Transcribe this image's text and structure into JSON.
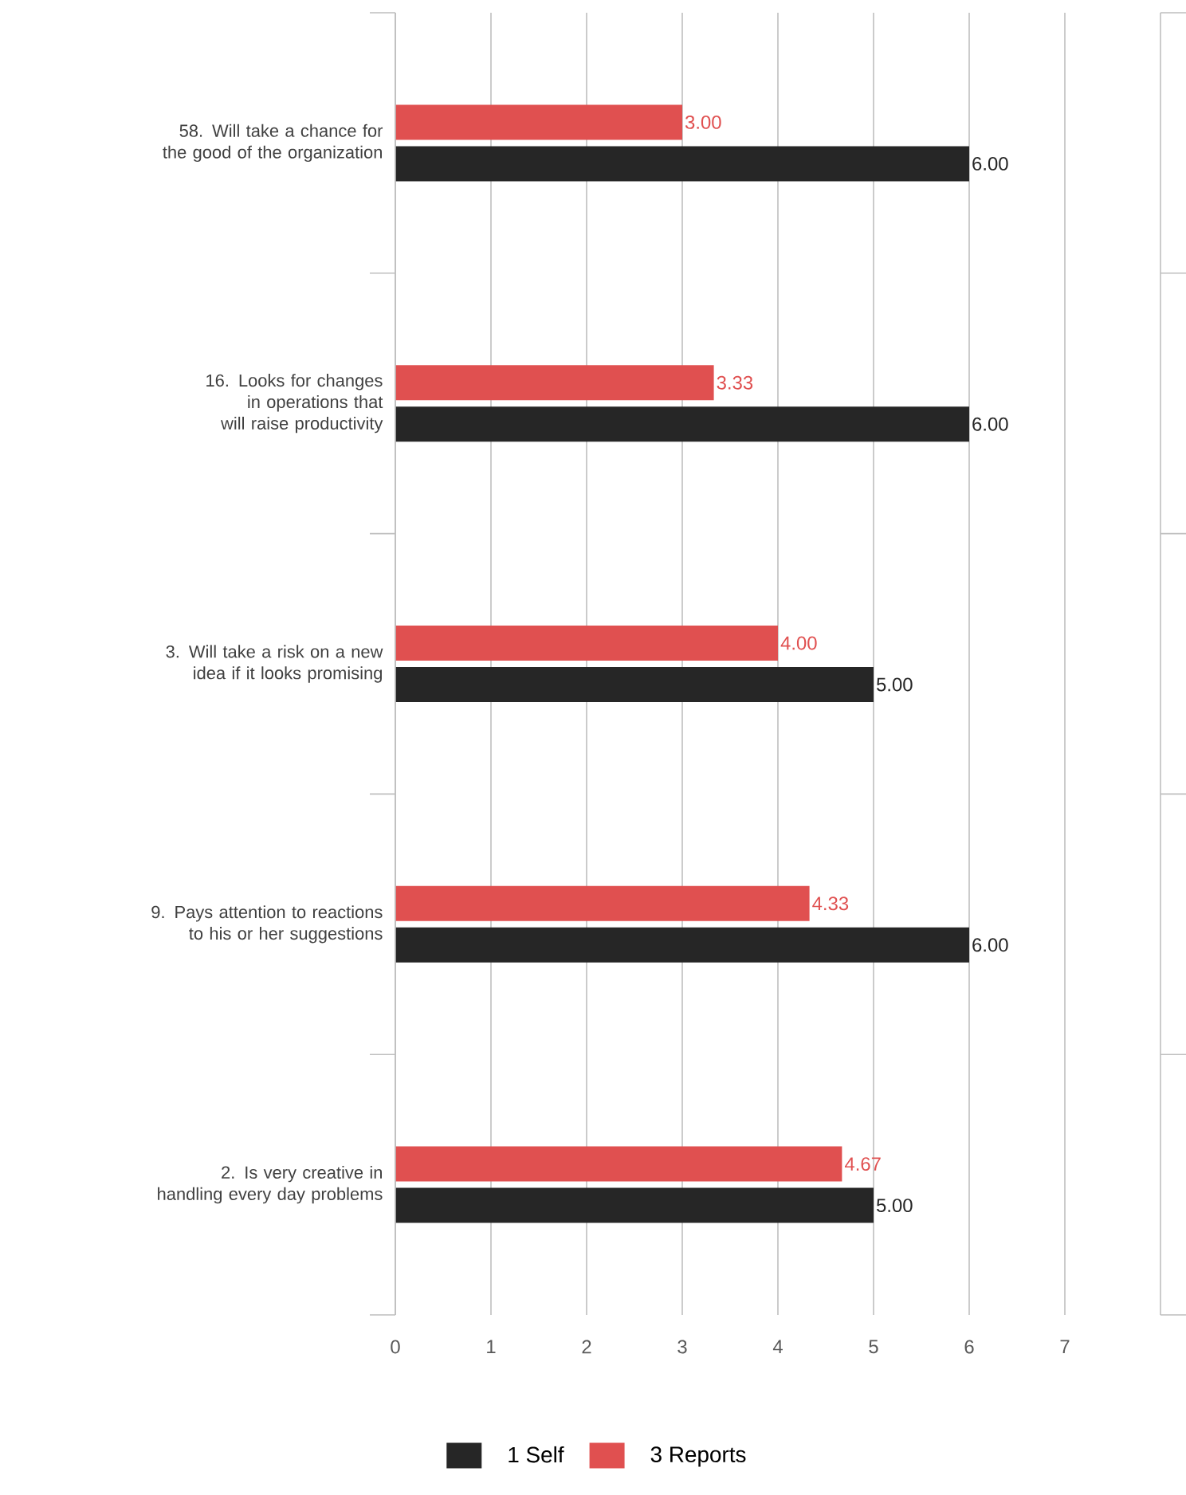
{
  "chart_data": {
    "type": "bar",
    "orientation": "horizontal",
    "categories": [
      "58. Will take a chance for the good of the organization",
      "16. Looks for changes in operations that will raise productivity",
      "3. Will take a risk on a new idea if it looks promising",
      "9. Pays attention to reactions to his or her suggestions",
      "2. Is very creative in handling every day problems"
    ],
    "series": [
      {
        "name": "1 Self",
        "color": "#262626",
        "values": [
          6,
          6,
          5,
          6,
          5
        ],
        "value_labels": [
          "6.00",
          "6.00",
          "5.00",
          "6.00",
          "5.00"
        ]
      },
      {
        "name": "3 Reports",
        "color": "#e05050",
        "values": [
          3,
          3.33,
          4,
          4.33,
          4.67
        ],
        "value_labels": [
          "3.00",
          "3.33",
          "4.00",
          "4.33",
          "4.67"
        ]
      }
    ],
    "xlim": [
      0,
      8
    ],
    "xticks": [
      0,
      1,
      2,
      3,
      4,
      5,
      6,
      7,
      {
        "value": 8,
        "label": null
      }
    ],
    "grid": "x",
    "legend": "bottom"
  }
}
